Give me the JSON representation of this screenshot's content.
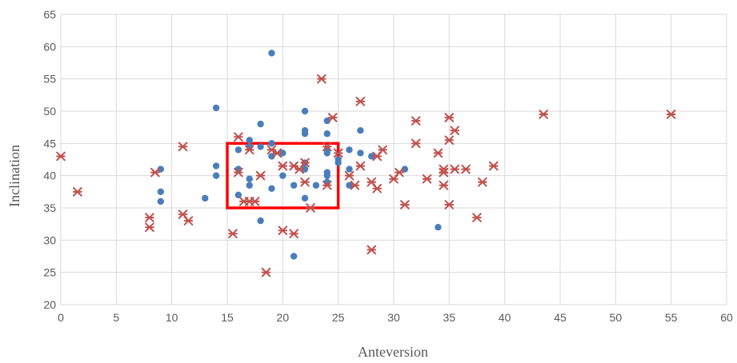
{
  "chart_data": {
    "type": "scatter",
    "xlabel": "Anteversion",
    "ylabel": "Inclination",
    "xlim": [
      0,
      60
    ],
    "ylim": [
      20,
      65
    ],
    "x_ticks": [
      0,
      5,
      10,
      15,
      20,
      25,
      30,
      35,
      40,
      45,
      50,
      55,
      60
    ],
    "y_ticks": [
      20,
      25,
      30,
      35,
      40,
      45,
      50,
      55,
      60,
      65
    ],
    "grid": true,
    "legend": "none",
    "series": [
      {
        "marker": "circle",
        "color": "#4a7ebb",
        "points": [
          [
            9,
            41
          ],
          [
            9,
            37.5
          ],
          [
            9,
            36
          ],
          [
            13,
            36.5
          ],
          [
            14,
            50.5
          ],
          [
            14,
            41.5
          ],
          [
            14,
            40
          ],
          [
            16,
            44
          ],
          [
            16,
            41
          ],
          [
            16,
            37
          ],
          [
            17,
            45.5
          ],
          [
            17,
            44.5
          ],
          [
            17,
            39.5
          ],
          [
            17,
            38.5
          ],
          [
            18,
            48
          ],
          [
            18,
            44.5
          ],
          [
            18,
            33
          ],
          [
            19,
            59
          ],
          [
            19,
            45
          ],
          [
            19,
            43
          ],
          [
            19,
            38
          ],
          [
            20,
            43.5
          ],
          [
            20,
            40
          ],
          [
            21,
            38.5
          ],
          [
            21,
            27.5
          ],
          [
            22,
            50
          ],
          [
            22,
            47
          ],
          [
            22,
            46.5
          ],
          [
            22,
            42
          ],
          [
            22,
            41
          ],
          [
            22,
            36.5
          ],
          [
            23,
            38.5
          ],
          [
            24,
            48.5
          ],
          [
            24,
            46.5
          ],
          [
            24,
            44
          ],
          [
            24,
            43.5
          ],
          [
            24,
            40.5
          ],
          [
            24,
            40
          ],
          [
            24,
            39
          ],
          [
            25,
            42.5
          ],
          [
            25,
            42
          ],
          [
            26,
            44
          ],
          [
            26,
            41
          ],
          [
            26,
            38.5
          ],
          [
            27,
            47
          ],
          [
            27,
            43.5
          ],
          [
            28,
            43
          ],
          [
            31,
            41
          ],
          [
            34,
            32
          ]
        ]
      },
      {
        "marker": "star",
        "color": "#c0504d",
        "points": [
          [
            0,
            43
          ],
          [
            1.5,
            37.5
          ],
          [
            8,
            33.5
          ],
          [
            8,
            32
          ],
          [
            8.5,
            40.5
          ],
          [
            11,
            44.5
          ],
          [
            11,
            34
          ],
          [
            11.5,
            33
          ],
          [
            15.5,
            31
          ],
          [
            16,
            46
          ],
          [
            16,
            40.5
          ],
          [
            16.5,
            36
          ],
          [
            17,
            44
          ],
          [
            17,
            36
          ],
          [
            17.5,
            36
          ],
          [
            18,
            40
          ],
          [
            18.5,
            25
          ],
          [
            19,
            44
          ],
          [
            19.5,
            43.5
          ],
          [
            20,
            41.5
          ],
          [
            20,
            31.5
          ],
          [
            21,
            41.5
          ],
          [
            21,
            31
          ],
          [
            21.5,
            41
          ],
          [
            22,
            42
          ],
          [
            22,
            39
          ],
          [
            22.5,
            35
          ],
          [
            23.5,
            55
          ],
          [
            24,
            44.5
          ],
          [
            24,
            38.5
          ],
          [
            24.5,
            49
          ],
          [
            25,
            43.5
          ],
          [
            26,
            40
          ],
          [
            26.5,
            38.5
          ],
          [
            27,
            51.5
          ],
          [
            27,
            41.5
          ],
          [
            28,
            39
          ],
          [
            28,
            28.5
          ],
          [
            28.5,
            38
          ],
          [
            28.5,
            43
          ],
          [
            29,
            44
          ],
          [
            30,
            39.5
          ],
          [
            30.5,
            40.5
          ],
          [
            31,
            35.5
          ],
          [
            32,
            48.5
          ],
          [
            32,
            45
          ],
          [
            33,
            39.5
          ],
          [
            34,
            43.5
          ],
          [
            34.5,
            41
          ],
          [
            34.5,
            40.5
          ],
          [
            34.5,
            38.5
          ],
          [
            35,
            49
          ],
          [
            35,
            45.5
          ],
          [
            35,
            35.5
          ],
          [
            35.5,
            47
          ],
          [
            35.5,
            41
          ],
          [
            36.5,
            41
          ],
          [
            37.5,
            33.5
          ],
          [
            38,
            39
          ],
          [
            39,
            41.5
          ],
          [
            43.5,
            49.5
          ],
          [
            55,
            49.5
          ]
        ]
      }
    ],
    "annotation_box": {
      "x_range": [
        15,
        25
      ],
      "y_range": [
        35,
        45
      ],
      "color": "#ff0000"
    }
  }
}
